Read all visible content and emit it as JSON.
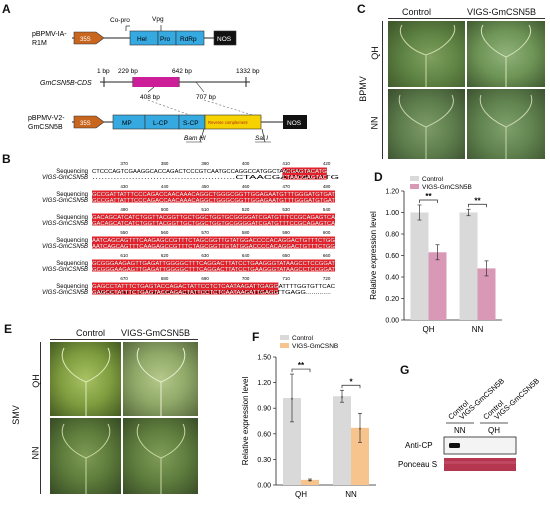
{
  "panels": {
    "A": "A",
    "B": "B",
    "C": "C",
    "D": "D",
    "E": "E",
    "F": "F",
    "G": "G"
  },
  "panel_a": {
    "construct1_name_l1": "pBPMV-IA-",
    "construct1_name_l2": "R1M",
    "c1_promoter": "35S",
    "c1_copro": "Co-pro",
    "c1_vpg": "Vpg",
    "c1_hel": "Hel",
    "c1_pro": "Pro",
    "c1_rdrp": "RdRp",
    "c1_nos": "NOS",
    "cds_name": "GmCSN5B-CDS",
    "pos_1": "1 bp",
    "pos_229": "229 bp",
    "pos_642": "642 bp",
    "pos_1332": "1332 bp",
    "pos_408": "408 bp",
    "pos_707": "707 bp",
    "construct2_name_l1": "pBPMV-V2-",
    "construct2_name_l2": "GmCSN5B",
    "c2_promoter": "35S",
    "c2_mp": "MP",
    "c2_lcp": "L-CP",
    "c2_scp": "S-CP",
    "c2_rev": "Reverse complement",
    "c2_nos": "NOS",
    "bamhi": "Bam HI",
    "sali": "Sal I"
  },
  "panel_b": {
    "label_seq": "Sequencing",
    "label_vigs": "VIGS-GmCSN5B",
    "rows": [
      {
        "nums": [
          "370",
          "380",
          "390",
          "400",
          "410",
          "420"
        ],
        "top": "CTCCCAGTCGAAGGCACCAGACTCCCGTCAATGCCAGGCCATGGCTAACGAGTACATG",
        "bot": "...............................................CTAACGAGTACATG",
        "hi_start": 47
      },
      {
        "nums": [
          "430",
          "440",
          "450",
          "460",
          "470",
          "480"
        ],
        "top": "GCCGATTATTTCCCAGACCAACAAACAGGCTGGGCGGTTGGAGAATGTTTGGGATGTGAT",
        "bot": "GCCGATTATTTCCCAGACCAACAAACAGGCTGGGCGGTTGGAGAATGTTTGGGATGTGAT",
        "hi_start": 0
      },
      {
        "nums": [
          "490",
          "500",
          "510",
          "520",
          "530",
          "540"
        ],
        "top": "GACAGCATCATCTGGTTACGGTTGCTGGCTGGTGCGGGGATCGATGTTTCCGCAGAGTCA",
        "bot": "GACAGCATCATCTGGTTACGGTTGCTGGCTGGTGCGGGGATCGATGTTTCCGCAGAGTCA",
        "hi_start": 0
      },
      {
        "nums": [
          "550",
          "560",
          "570",
          "580",
          "590",
          "600"
        ],
        "top": "AATCAGCAGTTTCAAGAGCCGTTTCTAGCGGTTGTATGGACCCCACAGGACTGTTTCTGG",
        "bot": "AATCAGCAGTTTCAAGAGCCGTTTCTAGCGGTTGTATGGACCCCACAGGACTGTTTCTGG",
        "hi_start": 0
      },
      {
        "nums": [
          "610",
          "620",
          "630",
          "640",
          "650",
          "660"
        ],
        "top": "GCGGGAAGAGTTGAGATTGGGGCTTTCAGGACTTATCCTGAAGGGTATAAGCCTCCGGAT",
        "bot": "GCGGGAAGAGTTGAGATTGGGGCTTTCAGGACTTATCCTGAAGGGTATAAGCCTCCGGAT",
        "hi_start": 0
      },
      {
        "nums": [
          "670",
          "680",
          "690",
          "700",
          "710",
          "720"
        ],
        "top": "GAGCCTATTTCTGAGTACCAGACTATTCCTCTCAATAAGATTGAGGATTTTGGTGTTCAC",
        "bot": "GAGCCTATTTCTGAGTACCAGACTATTCCTCTCAATAAGATTGAGG.............",
        "hi_start": 0,
        "hi_end": 46
      }
    ]
  },
  "panel_c": {
    "col_control": "Control",
    "col_vigs": "VIGS-GmCSN5B",
    "row_qh": "QH",
    "row_nn": "NN",
    "virus": "BPMV"
  },
  "panel_e": {
    "col_control": "Control",
    "col_vigs": "VIGS-GmCSN5B",
    "row_qh": "QH",
    "row_nn": "NN",
    "virus": "SMV"
  },
  "panel_g": {
    "lane_control_1": "Control",
    "lane_vigs_1": "VIGS-GmCSN5B",
    "lane_control_2": "Control",
    "lane_vigs_2": "VIGS-GmCSN5B",
    "group_nn": "NN",
    "group_qh": "QH",
    "row_anticp": "Anti-CP",
    "row_ponceau": "Ponceau S"
  },
  "chart_data": [
    {
      "id": "D",
      "type": "bar",
      "categories": [
        "QH",
        "NN"
      ],
      "series": [
        {
          "name": "Control",
          "color": "#d9d9d9",
          "values": [
            1.0,
            1.0
          ],
          "errors": [
            0.07,
            0.03
          ]
        },
        {
          "name": "VIGS-GmCSN5B",
          "color": "#d998b6",
          "values": [
            0.63,
            0.48
          ],
          "errors": [
            0.07,
            0.07
          ]
        }
      ],
      "ylabel": "Relative expression level",
      "ylim": [
        0,
        1.2
      ],
      "yticks": [
        "0.00",
        "0.20",
        "0.40",
        "0.60",
        "0.80",
        "1.00",
        "1.20"
      ],
      "significance": [
        "**",
        "**"
      ],
      "legend": "top-left"
    },
    {
      "id": "F",
      "type": "bar",
      "categories": [
        "QH",
        "NN"
      ],
      "series": [
        {
          "name": "Control",
          "color": "#d9d9d9",
          "values": [
            1.02,
            1.04
          ],
          "errors": [
            0.28,
            0.07
          ]
        },
        {
          "name": "VIGS-GmCSNB",
          "color": "#f7c48e",
          "values": [
            0.06,
            0.67
          ],
          "errors": [
            0.01,
            0.17
          ]
        }
      ],
      "ylabel": "Relative expression level",
      "ylim": [
        0,
        1.5
      ],
      "yticks": [
        "0.00",
        "0.30",
        "0.60",
        "0.90",
        "1.20",
        "1.50"
      ],
      "significance": [
        "**",
        "*"
      ],
      "point_marker": "*",
      "legend": "top-left"
    }
  ]
}
